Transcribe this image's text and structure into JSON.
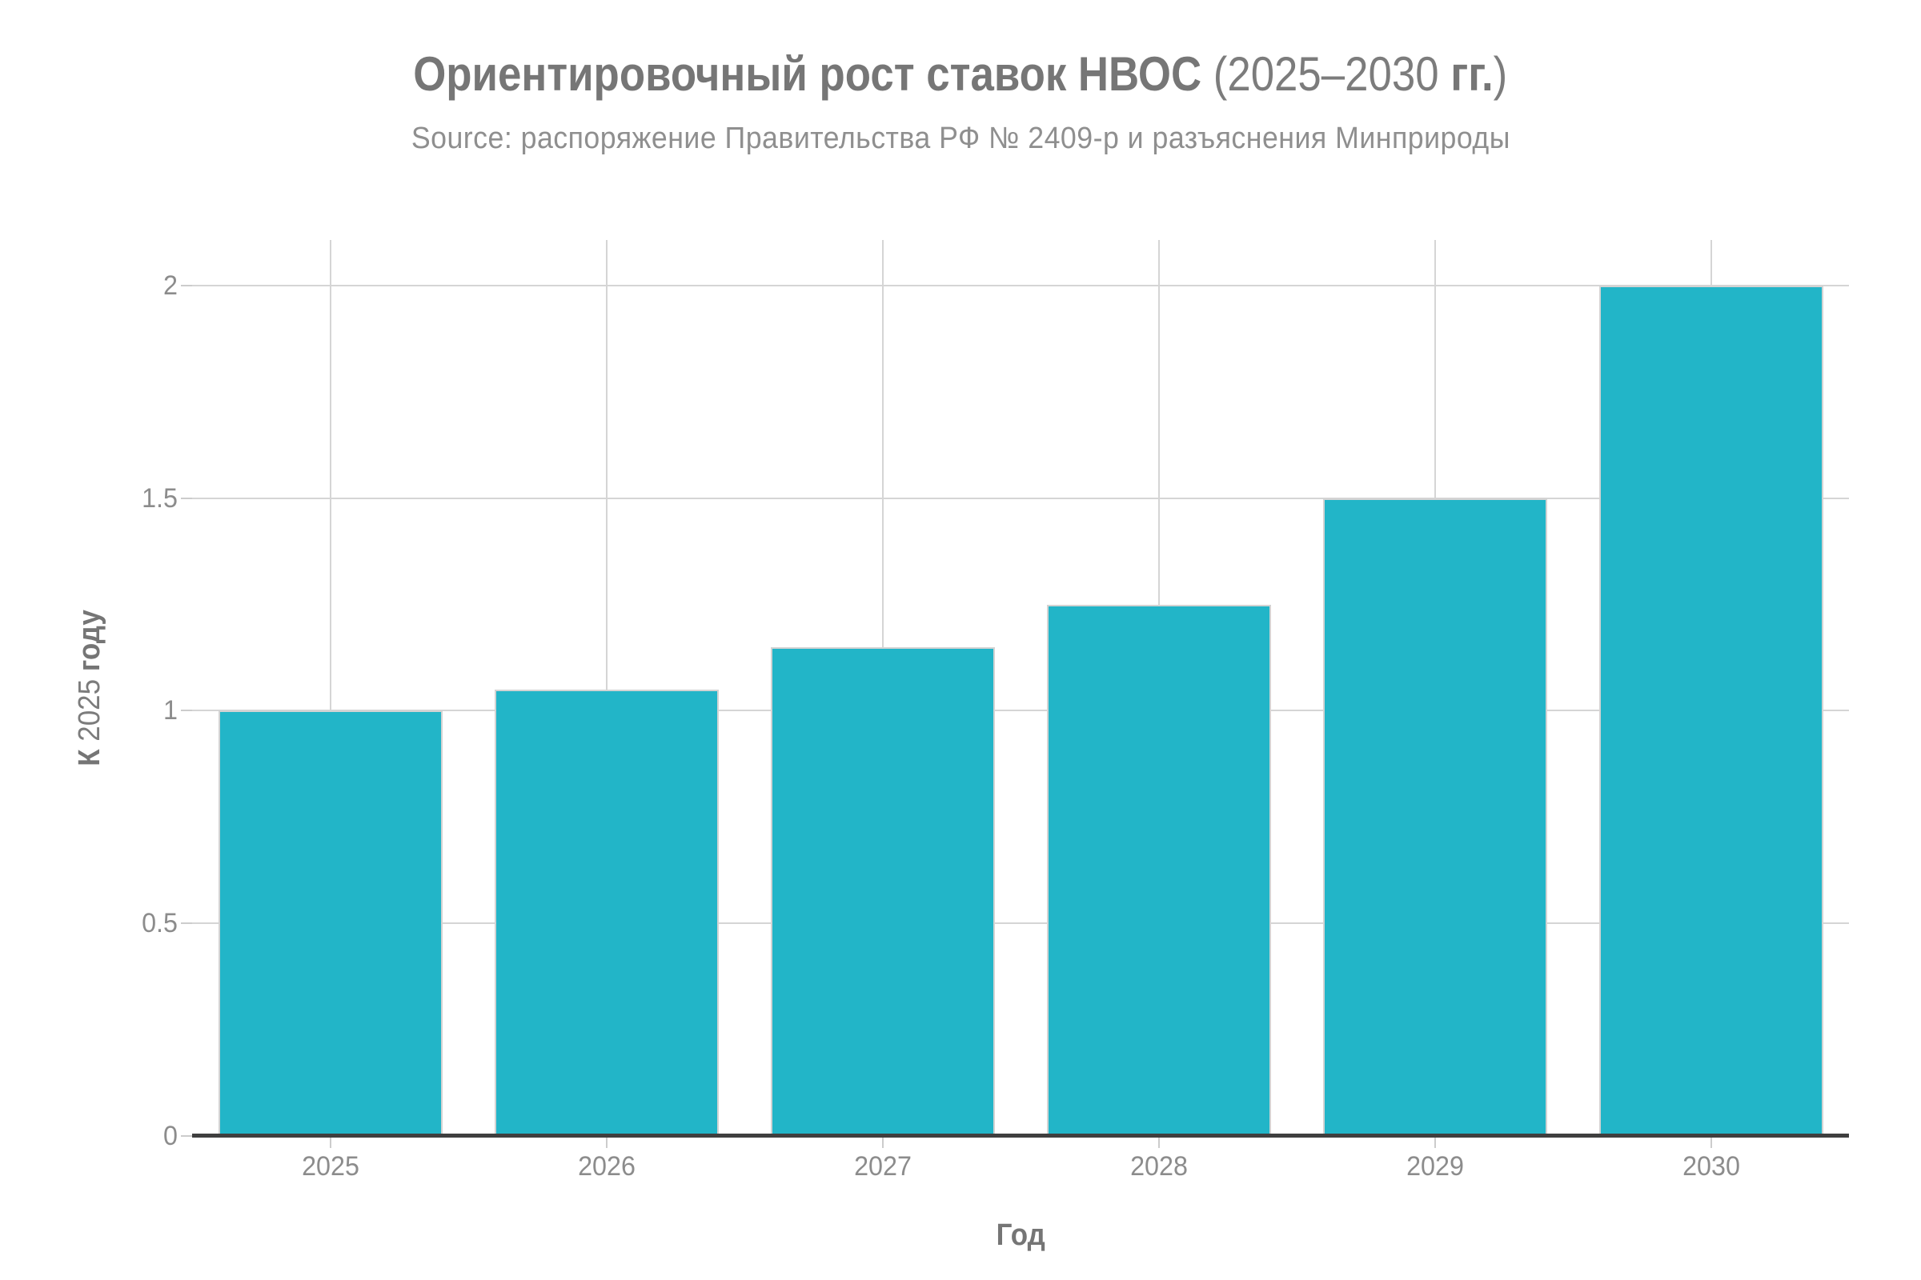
{
  "header": {
    "title_text": "Ориентировочный рост ставок НВОС (2025–2030 гг.)",
    "title_parts": [
      {
        "text": "Ориентировочный рост ставок НВОС",
        "bold": true
      },
      {
        "text": " (2025–2030 ",
        "bold": false
      },
      {
        "text": "гг.",
        "bold": true
      },
      {
        "text": ")",
        "bold": false
      }
    ],
    "subtitle": "Source: распоряжение Правительства РФ № 2409-р и разъяснения Минприроды"
  },
  "chart_data": {
    "type": "bar",
    "title": "Ориентировочный рост ставок НВОС (2025–2030 гг.)",
    "subtitle": "Source: распоряжение Правительства РФ № 2409-р и разъяснения Минприроды",
    "categories": [
      "2025",
      "2026",
      "2027",
      "2028",
      "2029",
      "2030"
    ],
    "values": [
      1,
      1.05,
      1.15,
      1.25,
      1.5,
      2
    ],
    "xlabel": "Год",
    "ylabel": "К 2025 году",
    "ylabel_parts": [
      {
        "text": "К",
        "bold": true
      },
      {
        "text": " 2025 ",
        "bold": false
      },
      {
        "text": "году",
        "bold": true
      }
    ],
    "yticks": [
      "0",
      "0.5",
      "1",
      "1.5",
      "2"
    ],
    "ytick_values": [
      0,
      0.5,
      1,
      1.5,
      2
    ],
    "ylim": [
      0,
      2.107
    ],
    "grid": true,
    "legend": false,
    "bar_color": "#22b5c8",
    "colors": {
      "bar": "#22b5c8",
      "bar_edge": "#d3d3d3",
      "gridline": "#d5d5d5",
      "tick_mark": "#cccccc",
      "axis_line": "#3f3f3f",
      "tick_label": "#8c8c8c",
      "title": "#767676",
      "subtitle": "#8f8f8f",
      "axis_title": "#757575",
      "background": "#ffffff"
    }
  }
}
